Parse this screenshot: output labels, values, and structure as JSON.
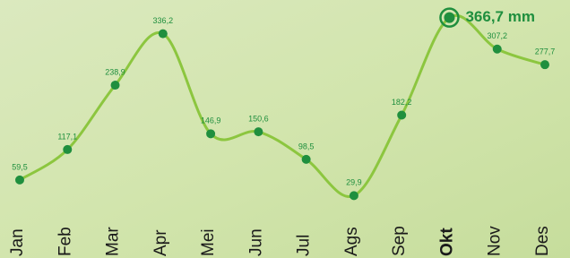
{
  "chart_data": {
    "type": "line",
    "categories": [
      "Jan",
      "Feb",
      "Mar",
      "Apr",
      "Mei",
      "Jun",
      "Jul",
      "Ags",
      "Sep",
      "Okt",
      "Nov",
      "Des"
    ],
    "series": [
      {
        "color": "#8cc63f",
        "values": [
          59.5,
          117.1,
          238.9,
          336.2,
          146.9,
          150.6,
          98.5,
          29.9,
          182.2,
          366.7,
          307.2,
          277.7
        ],
        "value_labels": [
          "59,5",
          "117,1",
          "238,9",
          "336,2",
          "146,9",
          "150,6",
          "98,5",
          "29,9",
          "182,2",
          "366,7 mm",
          "307,2",
          "277,7"
        ]
      }
    ],
    "marker_color": "#1f8f3e",
    "highlight": "Okt",
    "ylim": [
      0,
      400
    ]
  }
}
